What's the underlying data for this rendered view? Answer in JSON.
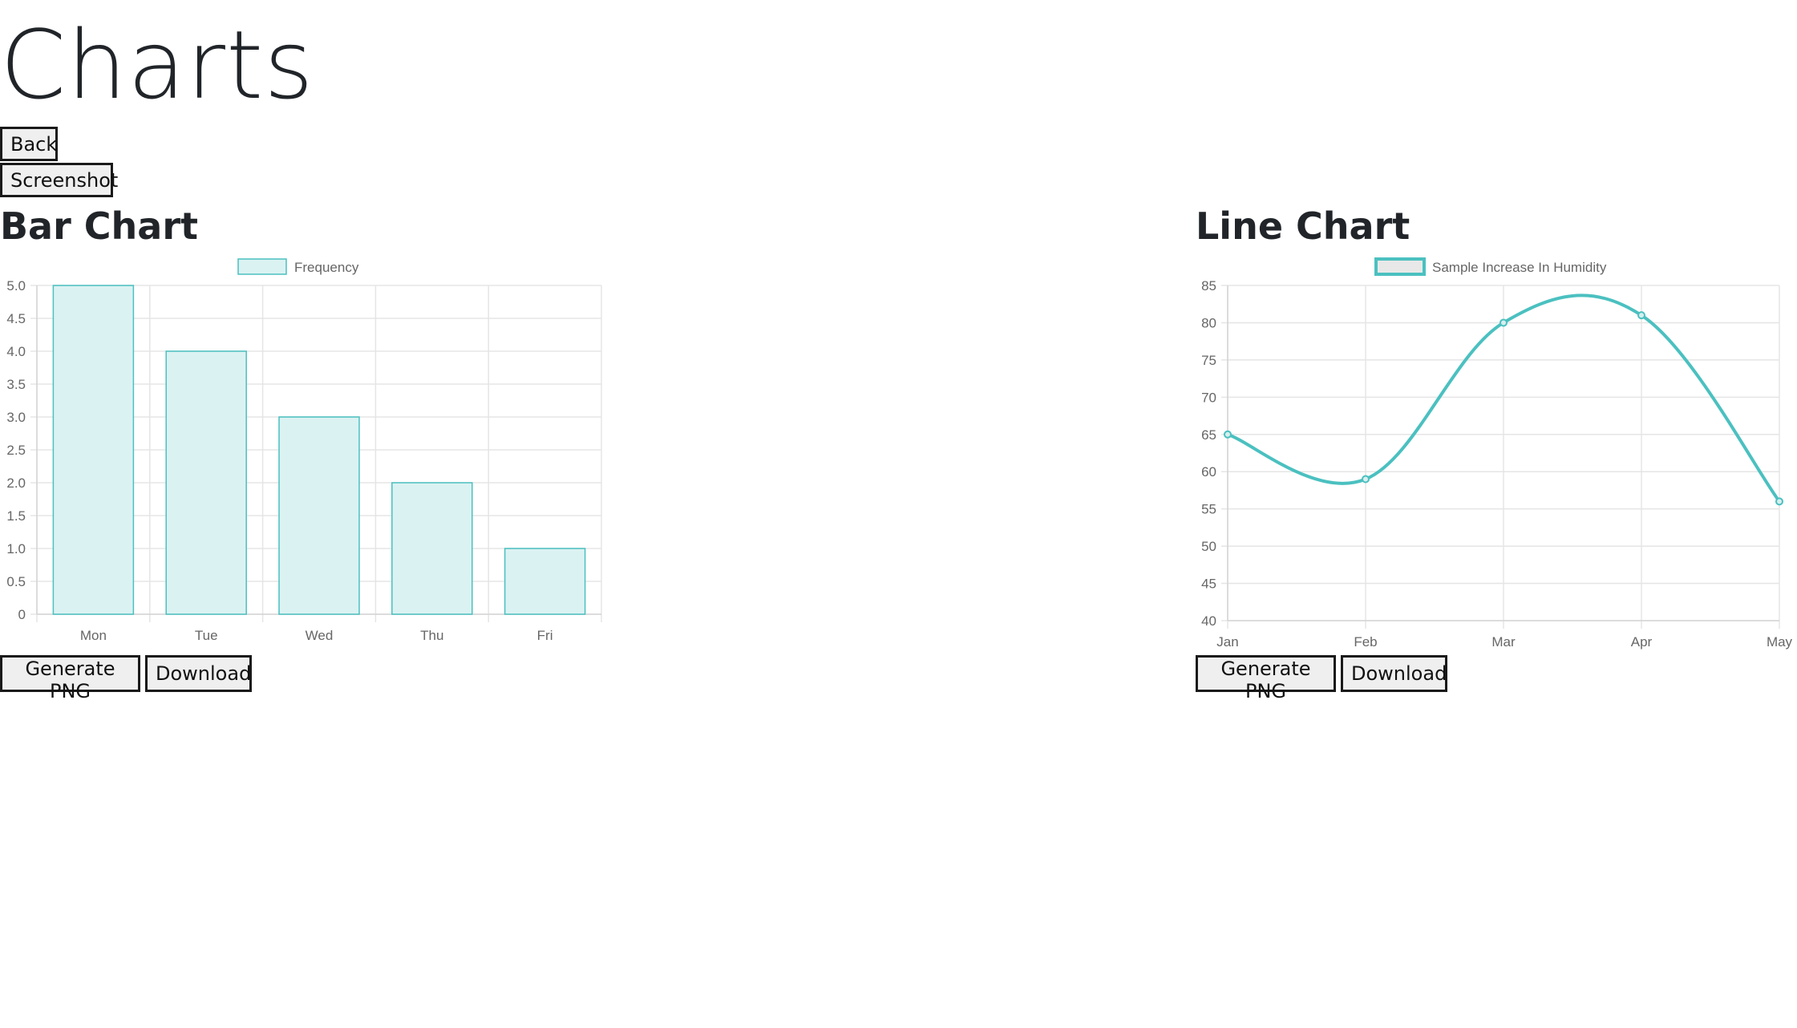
{
  "page": {
    "title": "Charts",
    "back_label": "Back",
    "screenshot_label": "Screenshot"
  },
  "bar_panel": {
    "heading": "Bar Chart",
    "generate_label": "Generate PNG",
    "download_label": "Download"
  },
  "line_panel": {
    "heading": "Line Chart",
    "generate_label": "Generate PNG",
    "download_label": "Download"
  },
  "colors": {
    "accent": "#4bc0c0",
    "bar_fill": "#dbf2f2",
    "grid": "#e5e5e5",
    "tick_text": "#666666"
  },
  "chart_data": [
    {
      "type": "bar",
      "title": "",
      "categories": [
        "Mon",
        "Tue",
        "Wed",
        "Thu",
        "Fri"
      ],
      "series": [
        {
          "name": "Frequency",
          "values": [
            5,
            4,
            3,
            2,
            1
          ]
        }
      ],
      "ylim": [
        0,
        5
      ],
      "yticks": [
        "0",
        "0.5",
        "1.0",
        "1.5",
        "2.0",
        "2.5",
        "3.0",
        "3.5",
        "4.0",
        "4.5",
        "5.0"
      ],
      "grid": true,
      "legend": "top-center"
    },
    {
      "type": "line",
      "title": "",
      "categories": [
        "Jan",
        "Feb",
        "Mar",
        "Apr",
        "May"
      ],
      "series": [
        {
          "name": "Sample Increase In Humidity",
          "values": [
            65,
            59,
            80,
            81,
            56
          ]
        }
      ],
      "ylim": [
        40,
        85
      ],
      "yticks": [
        "40",
        "45",
        "50",
        "55",
        "60",
        "65",
        "70",
        "75",
        "80",
        "85"
      ],
      "grid": true,
      "legend": "top-center"
    }
  ]
}
